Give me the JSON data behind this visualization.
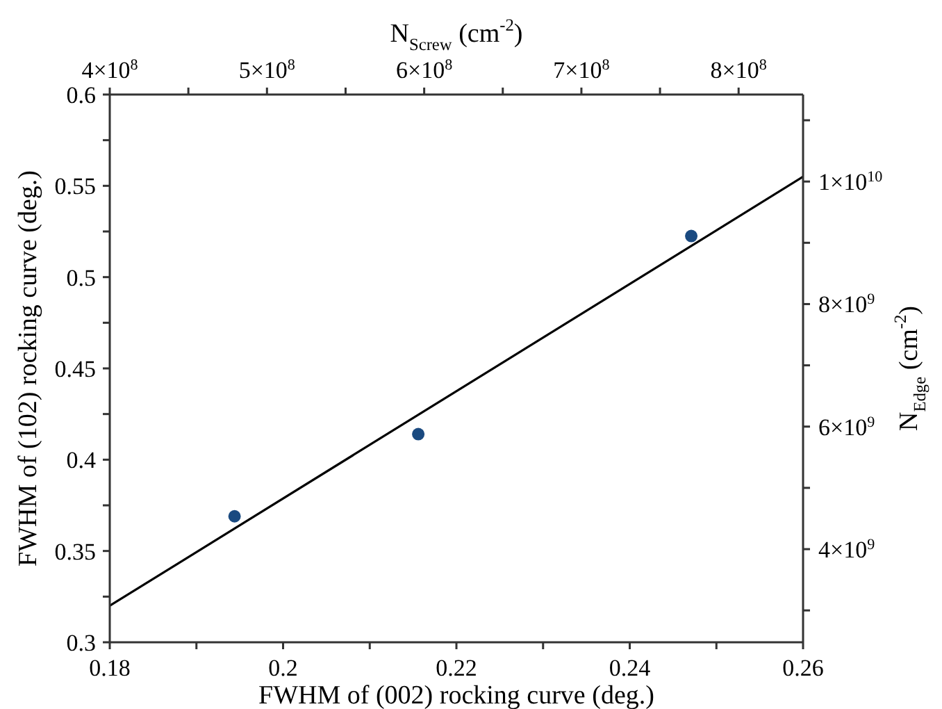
{
  "chart_data": {
    "type": "scatter",
    "xlabel": "FWHM of (002) rocking curve (deg.)",
    "ylabel": "FWHM of (102) rocking curve (deg.)",
    "x2label": "N$_{Screw}$ (cm$^{-2}$)",
    "y2label": "N$_{Edge}$ (cm$^{-2}$)",
    "xlim": [
      0.18,
      0.26
    ],
    "xticks": [
      0.18,
      {
        "value": 0.19,
        "label": null
      },
      0.2,
      {
        "value": 0.21,
        "label": null
      },
      0.22,
      {
        "value": 0.23,
        "label": null
      },
      0.24,
      {
        "value": 0.25,
        "label": null
      },
      0.26
    ],
    "ylim": [
      0.3,
      0.6
    ],
    "yticks": [
      0.3,
      {
        "value": 0.325,
        "label": null
      },
      0.35,
      {
        "value": 0.375,
        "label": null
      },
      0.4,
      {
        "value": 0.425,
        "label": null
      },
      0.45,
      {
        "value": 0.475,
        "label": null
      },
      0.5,
      {
        "value": 0.525,
        "label": null
      },
      0.55,
      {
        "value": 0.575,
        "label": null
      },
      0.6
    ],
    "x2lim": [
      400000000,
      841000000
    ],
    "x2ticks": [
      {
        "value": 400000000,
        "label": "4×10$^{8}$"
      },
      {
        "value": 450000000,
        "label": null
      },
      {
        "value": 500000000,
        "label": "5×10$^{8}$"
      },
      {
        "value": 550000000,
        "label": null
      },
      {
        "value": 600000000,
        "label": "6×10$^{8}$"
      },
      {
        "value": 650000000,
        "label": null
      },
      {
        "value": 700000000,
        "label": "7×10$^{8}$"
      },
      {
        "value": 750000000,
        "label": null
      },
      {
        "value": 800000000,
        "label": "8×10$^{8}$"
      }
    ],
    "y2lim": [
      2480000000,
      11420000000
    ],
    "y2ticks": [
      {
        "value": 3000000000,
        "label": null
      },
      {
        "value": 4000000000,
        "label": "4×10$^{9}$"
      },
      {
        "value": 5000000000,
        "label": null
      },
      {
        "value": 6000000000,
        "label": "6×10$^{9}$"
      },
      {
        "value": 7000000000,
        "label": null
      },
      {
        "value": 8000000000,
        "label": "8×10$^{9}$"
      },
      {
        "value": 9000000000,
        "label": null
      },
      {
        "value": 10000000000,
        "label": "1×10$^{10}$"
      },
      {
        "value": 11000000000,
        "label": null
      }
    ],
    "series": [
      {
        "marker": "circle",
        "color": "#1a4a80",
        "x": [
          0.1944,
          0.2156,
          0.2471
        ],
        "values": [
          0.369,
          0.414,
          0.5225
        ]
      },
      {
        "type": "line",
        "marker": "none",
        "color": "#000000",
        "x": [
          0.18,
          0.26
        ],
        "values": [
          0.32,
          0.555
        ]
      }
    ]
  }
}
